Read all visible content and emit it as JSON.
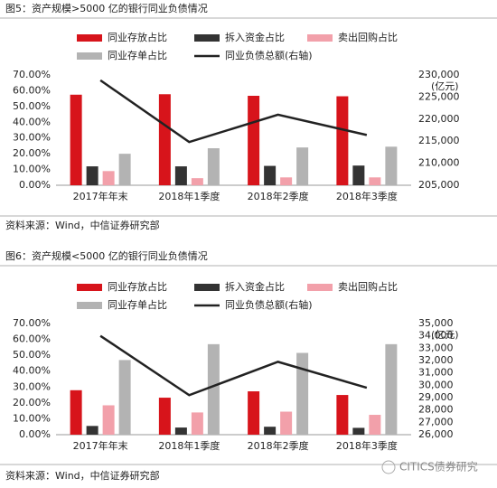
{
  "chart_data": [
    {
      "type": "bar",
      "title": "图5：资产规模>5000 亿的银行同业负债情况",
      "categories": [
        "2017年年末",
        "2018年1季度",
        "2018年2季度",
        "2018年3季度"
      ],
      "series": [
        {
          "name": "同业存放占比",
          "color": "#d7141b",
          "values": [
            57.5,
            57.8,
            56.8,
            56.5
          ]
        },
        {
          "name": "拆入资金占比",
          "color": "#333333",
          "values": [
            12,
            12,
            12.3,
            12.5
          ]
        },
        {
          "name": "卖出回购占比",
          "color": "#f2a0aa",
          "values": [
            9,
            4.5,
            5,
            5
          ]
        },
        {
          "name": "同业存单占比",
          "color": "#b3b3b3",
          "values": [
            20,
            23.5,
            24,
            24.5
          ]
        },
        {
          "name": "同业负债总额(右轴)",
          "color": "#222222",
          "type": "line",
          "axis": "y2",
          "values": [
            228800,
            214800,
            221000,
            216400
          ]
        }
      ],
      "ylim": [
        0,
        70
      ],
      "yticks": [
        {
          "value": 0,
          "label": "0.00%"
        },
        {
          "value": 10,
          "label": "10.00%"
        },
        {
          "value": 20,
          "label": "20.00%"
        },
        {
          "value": 30,
          "label": "30.00%"
        },
        {
          "value": 40,
          "label": "40.00%"
        },
        {
          "value": 50,
          "label": "50.00%"
        },
        {
          "value": 60,
          "label": "60.00%"
        },
        {
          "value": 70,
          "label": "70.00%"
        }
      ],
      "y2lim": [
        205000,
        230000
      ],
      "y2ticks": [
        {
          "value": 205000,
          "label": "205,000"
        },
        {
          "value": 210000,
          "label": "210,000"
        },
        {
          "value": 215000,
          "label": "215,000"
        },
        {
          "value": 220000,
          "label": "220,000"
        },
        {
          "value": 225000,
          "label": "225,000"
        },
        {
          "value": 230000,
          "label": "230,000"
        }
      ],
      "y2label": "(亿元)",
      "source": "资料来源：Wind，中信证券研究部"
    },
    {
      "type": "bar",
      "title": "图6：资产规模<5000 亿的银行同业负债情况",
      "categories": [
        "2017年年末",
        "2018年1季度",
        "2018年2季度",
        "2018年3季度"
      ],
      "series": [
        {
          "name": "同业存放占比",
          "color": "#d7141b",
          "values": [
            28,
            23.3,
            27.3,
            25
          ]
        },
        {
          "name": "拆入资金占比",
          "color": "#333333",
          "values": [
            5.5,
            4.5,
            5,
            4.3
          ]
        },
        {
          "name": "卖出回购占比",
          "color": "#f2a0aa",
          "values": [
            18.5,
            14,
            14.5,
            12.5
          ]
        },
        {
          "name": "同业存单占比",
          "color": "#b3b3b3",
          "values": [
            47,
            57,
            51.5,
            57
          ]
        },
        {
          "name": "同业负债总额(右轴)",
          "color": "#222222",
          "type": "line",
          "axis": "y2",
          "values": [
            34000,
            29200,
            31900,
            29800
          ]
        }
      ],
      "ylim": [
        0,
        70
      ],
      "yticks": [
        {
          "value": 0,
          "label": "0.00%"
        },
        {
          "value": 10,
          "label": "10.00%"
        },
        {
          "value": 20,
          "label": "20.00%"
        },
        {
          "value": 30,
          "label": "30.00%"
        },
        {
          "value": 40,
          "label": "40.00%"
        },
        {
          "value": 50,
          "label": "50.00%"
        },
        {
          "value": 60,
          "label": "60.00%"
        },
        {
          "value": 70,
          "label": "70.00%"
        }
      ],
      "y2lim": [
        26000,
        35000
      ],
      "y2ticks": [
        {
          "value": 26000,
          "label": "26,000"
        },
        {
          "value": 27000,
          "label": "27,000"
        },
        {
          "value": 28000,
          "label": "28,000"
        },
        {
          "value": 29000,
          "label": "29,000"
        },
        {
          "value": 30000,
          "label": "30,000"
        },
        {
          "value": 31000,
          "label": "31,000"
        },
        {
          "value": 32000,
          "label": "32,000"
        },
        {
          "value": 33000,
          "label": "33,000"
        },
        {
          "value": 34000,
          "label": "34,000"
        },
        {
          "value": 35000,
          "label": "35,000"
        }
      ],
      "y2label": "(亿元)",
      "source": "资料来源：Wind，中信证券研究部"
    }
  ],
  "watermark": "CITICS债券研究"
}
